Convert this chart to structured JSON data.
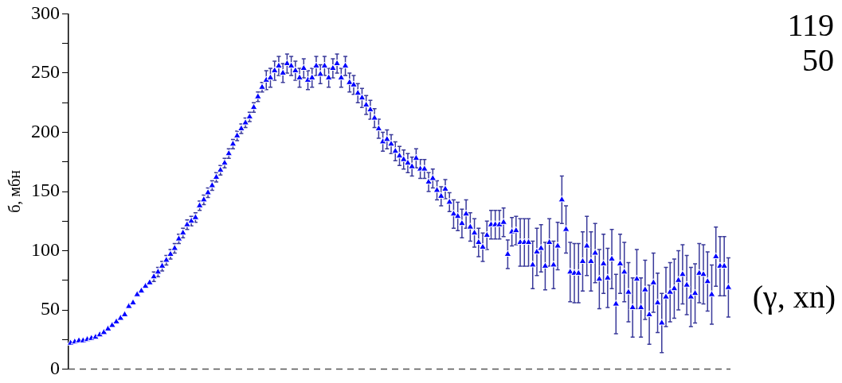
{
  "chart_data": {
    "type": "scatter",
    "ylabel": "б, мбн",
    "annotations": [
      "119",
      "50",
      "(γ, xn)"
    ],
    "categories": [
      null,
      null,
      null,
      null,
      null,
      null,
      null,
      null,
      null,
      null,
      null,
      null,
      null,
      null,
      null,
      null,
      null,
      null,
      null,
      null,
      null,
      null,
      null,
      null,
      null,
      null,
      null,
      null,
      null,
      null,
      null,
      null,
      null,
      null,
      null,
      null,
      null,
      null,
      null,
      null,
      null,
      null,
      null,
      null,
      null,
      null,
      null,
      null,
      null,
      null,
      null,
      null,
      null,
      null,
      null,
      null,
      null,
      null,
      null,
      null,
      null,
      null,
      null,
      null,
      null,
      null,
      null,
      null,
      null,
      null,
      null,
      null,
      null,
      null,
      null,
      null,
      null,
      null,
      null,
      null,
      null,
      null,
      null,
      null,
      null,
      null,
      null,
      null,
      null,
      null,
      null,
      null,
      null,
      null,
      null,
      null,
      null,
      null,
      null,
      null,
      null,
      null,
      null,
      null,
      null,
      null,
      null,
      null,
      null,
      null,
      null,
      null,
      null,
      null,
      null,
      null,
      null,
      null,
      null,
      null,
      null,
      null,
      null,
      null,
      null,
      null,
      null,
      null,
      null,
      null,
      null,
      null,
      null,
      null,
      null,
      null,
      null,
      null,
      null,
      null,
      null,
      null,
      null,
      null,
      null,
      null,
      null,
      null,
      null,
      null,
      null,
      null,
      null,
      null,
      null,
      null,
      null,
      null,
      null
    ],
    "series": [
      {
        "color": "#0000ff",
        "values": [
          22,
          23,
          24,
          24,
          25,
          26,
          27,
          29,
          31,
          34,
          37,
          40,
          43,
          46,
          53,
          56,
          63,
          66,
          70,
          73,
          78,
          82,
          87,
          92,
          97,
          102,
          110,
          115,
          122,
          125,
          128,
          138,
          143,
          149,
          155,
          162,
          168,
          174,
          182,
          190,
          197,
          203,
          208,
          213,
          221,
          230,
          238,
          244,
          246,
          252,
          256,
          250,
          258,
          256,
          252,
          246,
          254,
          244,
          246,
          256,
          249,
          256,
          246,
          254,
          258,
          246,
          256,
          242,
          240,
          233,
          229,
          223,
          219,
          212,
          203,
          192,
          194,
          190,
          184,
          180,
          177,
          174,
          171,
          178,
          169,
          169,
          158,
          161,
          151,
          146,
          152,
          141,
          131,
          129,
          123,
          131,
          120,
          115,
          107,
          103,
          113,
          122,
          122,
          122,
          124,
          97,
          116,
          117,
          107,
          107,
          107,
          88,
          99,
          102,
          87,
          107,
          88,
          104,
          143,
          118,
          82,
          81,
          81,
          91,
          104,
          91,
          98,
          76,
          89,
          77,
          93,
          55,
          89,
          82,
          65,
          52,
          76,
          52,
          67,
          46,
          73,
          56,
          39,
          61,
          65,
          68,
          75,
          80,
          71,
          61,
          64,
          81,
          80,
          74,
          63,
          95,
          87,
          87,
          69
        ],
        "errors": [
          null,
          null,
          null,
          null,
          null,
          null,
          null,
          null,
          null,
          null,
          null,
          null,
          null,
          null,
          null,
          null,
          null,
          null,
          null,
          null,
          4,
          4,
          4,
          4,
          4,
          4,
          4,
          4,
          4,
          4,
          4,
          4,
          4,
          4,
          4,
          4,
          4,
          4,
          4,
          4,
          4,
          4,
          4,
          4,
          4,
          4,
          4,
          8,
          8,
          8,
          8,
          8,
          8,
          8,
          8,
          8,
          8,
          8,
          8,
          8,
          8,
          8,
          8,
          8,
          8,
          8,
          8,
          8,
          8,
          8,
          8,
          8,
          8,
          8,
          8,
          8,
          8,
          8,
          8,
          8,
          8,
          8,
          8,
          8,
          8,
          8,
          8,
          8,
          8,
          8,
          8,
          8,
          12,
          12,
          12,
          12,
          12,
          12,
          12,
          12,
          12,
          12,
          12,
          12,
          12,
          12,
          12,
          12,
          20,
          20,
          20,
          20,
          20,
          20,
          20,
          20,
          20,
          20,
          20,
          20,
          25,
          25,
          25,
          25,
          25,
          25,
          25,
          25,
          25,
          25,
          25,
          25,
          25,
          25,
          25,
          25,
          25,
          25,
          25,
          25,
          25,
          25,
          25,
          25,
          25,
          25,
          25,
          25,
          25,
          25,
          25,
          25,
          25,
          25,
          25,
          25,
          25,
          25,
          25
        ]
      }
    ],
    "ylim": [
      0,
      300
    ],
    "yticks": [
      0,
      {
        "value": 25,
        "label": null
      },
      50,
      {
        "value": 75,
        "label": null
      },
      100,
      {
        "value": 125,
        "label": null
      },
      150,
      {
        "value": 175,
        "label": null
      },
      200,
      {
        "value": 225,
        "label": null
      },
      250,
      {
        "value": 275,
        "label": null
      },
      300
    ],
    "ref_lines": [
      {
        "axis": "y",
        "value": 0,
        "line_style": "dashed",
        "color": "#555555"
      }
    ],
    "marker": "triangle",
    "grid": false,
    "legend": false,
    "tick_labels": "y"
  }
}
